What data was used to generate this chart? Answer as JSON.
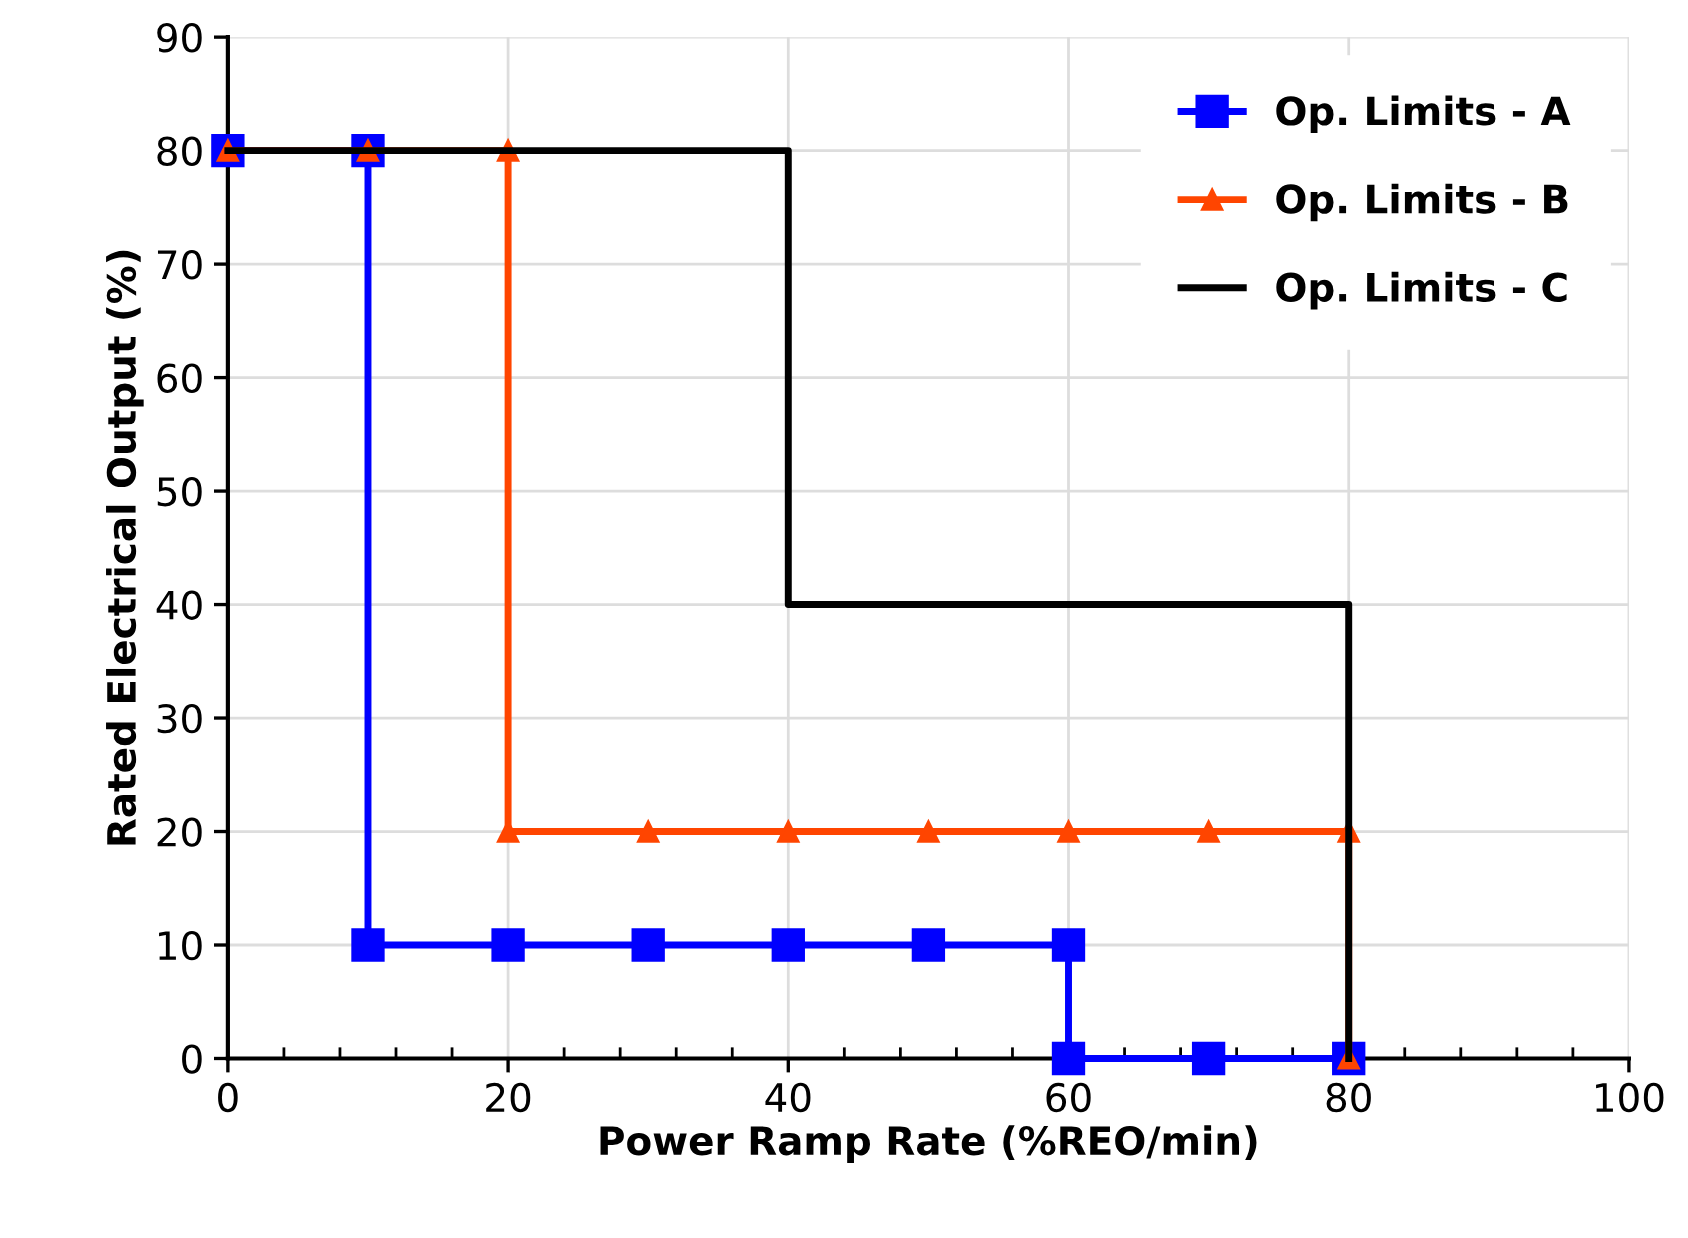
{
  "chart_data": {
    "type": "line",
    "xlabel": "Power Ramp Rate (%REO/min)",
    "ylabel": "Rated Electrical Output (%)",
    "xlim": [
      0,
      100
    ],
    "ylim": [
      0,
      90
    ],
    "xticks": [
      0,
      {
        "value": 4,
        "label": null
      },
      {
        "value": 8,
        "label": null
      },
      {
        "value": 12,
        "label": null
      },
      {
        "value": 16,
        "label": null
      },
      20,
      {
        "value": 24,
        "label": null
      },
      {
        "value": 28,
        "label": null
      },
      {
        "value": 32,
        "label": null
      },
      {
        "value": 36,
        "label": null
      },
      40,
      {
        "value": 44,
        "label": null
      },
      {
        "value": 48,
        "label": null
      },
      {
        "value": 52,
        "label": null
      },
      {
        "value": 56,
        "label": null
      },
      60,
      {
        "value": 64,
        "label": null
      },
      {
        "value": 68,
        "label": null
      },
      {
        "value": 72,
        "label": null
      },
      {
        "value": 76,
        "label": null
      },
      80,
      {
        "value": 84,
        "label": null
      },
      {
        "value": 88,
        "label": null
      },
      {
        "value": 92,
        "label": null
      },
      {
        "value": 96,
        "label": null
      },
      100
    ],
    "yticks": [
      0,
      10,
      20,
      30,
      40,
      50,
      60,
      70,
      80,
      90
    ],
    "grid": true,
    "legend": "top right",
    "series": [
      {
        "name": "Op. Limits - A",
        "color": "#0000ff",
        "marker": "square",
        "x": [
          0,
          10,
          10,
          20,
          30,
          40,
          50,
          60,
          60,
          70,
          80
        ],
        "values": [
          80,
          80,
          10,
          10,
          10,
          10,
          10,
          10,
          0,
          0,
          0
        ]
      },
      {
        "name": "Op. Limits - B",
        "color": "#ff4500",
        "marker": "triangle",
        "x": [
          0,
          10,
          20,
          20,
          30,
          40,
          50,
          60,
          70,
          80,
          80
        ],
        "values": [
          80,
          80,
          80,
          20,
          20,
          20,
          20,
          20,
          20,
          20,
          0
        ]
      },
      {
        "name": "Op. Limits - C",
        "color": "#000000",
        "marker": "none",
        "x": [
          0,
          40,
          40,
          80,
          80
        ],
        "values": [
          80,
          80,
          40,
          40,
          0
        ]
      }
    ]
  }
}
